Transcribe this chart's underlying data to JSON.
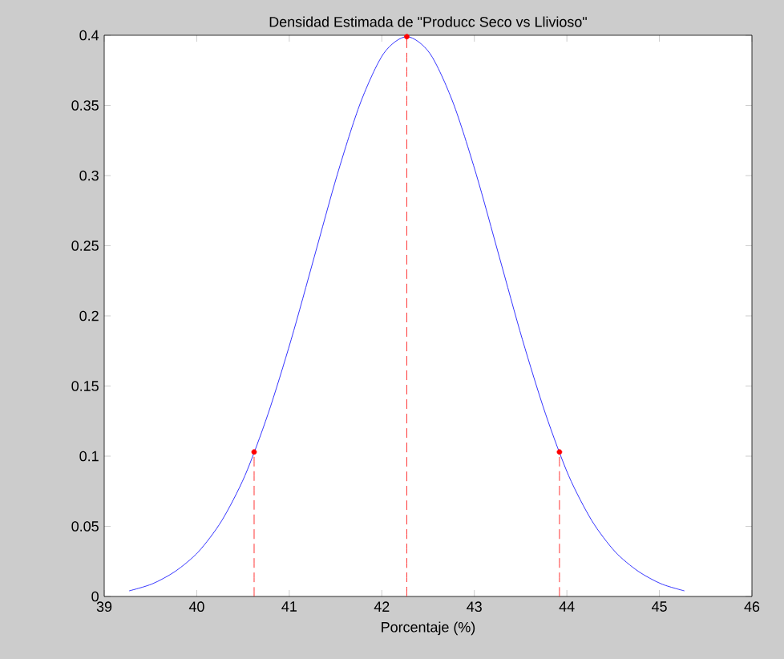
{
  "chart_data": {
    "type": "line",
    "title": "Densidad Estimada de \"Producc Seco vs Llivioso\"",
    "xlabel": "Porcentaje (%)",
    "xlim": [
      39,
      46
    ],
    "xticks": [
      39,
      40,
      41,
      42,
      43,
      44,
      45,
      46
    ],
    "ylim": [
      0,
      0.4
    ],
    "yticks": [
      0,
      0.05,
      0.1,
      0.15,
      0.2,
      0.25,
      0.3,
      0.35,
      0.4
    ],
    "grid": false,
    "series": [
      {
        "color": "#0000ff",
        "line_style": "solid",
        "marker": "none",
        "x": [
          39.27,
          39.52,
          39.77,
          40.02,
          40.27,
          40.52,
          40.77,
          41.02,
          41.27,
          41.52,
          41.77,
          42.02,
          42.27,
          42.52,
          42.77,
          43.02,
          43.27,
          43.52,
          43.77,
          44.02,
          44.27,
          44.52,
          44.77,
          45.02,
          45.27
        ],
        "values": [
          0.004,
          0.009,
          0.018,
          0.032,
          0.054,
          0.086,
          0.13,
          0.183,
          0.242,
          0.301,
          0.352,
          0.387,
          0.399,
          0.387,
          0.352,
          0.301,
          0.242,
          0.183,
          0.13,
          0.086,
          0.054,
          0.032,
          0.018,
          0.009,
          0.004
        ]
      },
      {
        "type": "line",
        "color": "#ff0000",
        "line_style": "dashed",
        "marker": "none",
        "x": [
          40.62,
          40.62
        ],
        "values": [
          0,
          0.103
        ]
      },
      {
        "type": "line",
        "color": "#ff0000",
        "line_style": "dashed",
        "marker": "none",
        "x": [
          42.27,
          42.27
        ],
        "values": [
          0,
          0.399
        ]
      },
      {
        "type": "line",
        "color": "#ff0000",
        "line_style": "dashed",
        "marker": "none",
        "x": [
          43.92,
          43.92
        ],
        "values": [
          0,
          0.103
        ]
      },
      {
        "type": "scatter",
        "color": "#ff0000",
        "marker": "circle",
        "x": [
          40.62,
          42.27,
          43.92
        ],
        "values": [
          0.103,
          0.399,
          0.103
        ]
      }
    ]
  }
}
